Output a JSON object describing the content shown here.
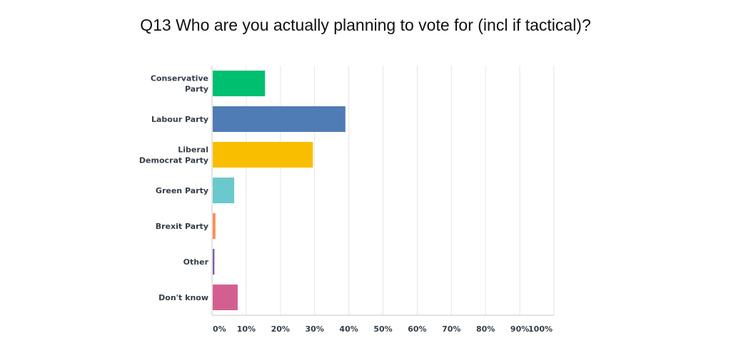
{
  "chart_data": {
    "type": "bar",
    "orientation": "horizontal",
    "title": "Q13 Who are you actually planning to vote for (incl if tactical)?",
    "categories": [
      [
        "Conservative",
        "Party"
      ],
      [
        "Labour Party"
      ],
      [
        "Liberal",
        "Democrat Party"
      ],
      [
        "Green Party"
      ],
      [
        "Brexit Party"
      ],
      [
        "Other"
      ],
      [
        "Don't know"
      ]
    ],
    "values": [
      15.5,
      39,
      29.5,
      6.5,
      1,
      0.7,
      7.5
    ],
    "colors": [
      "#00bf6f",
      "#507cb6",
      "#f9be00",
      "#6bc8cd",
      "#ff8b4f",
      "#7d5ba6",
      "#d25f90"
    ],
    "xlim": [
      0,
      100
    ],
    "ticks": [
      "0%",
      "10%",
      "20%",
      "30%",
      "40%",
      "50%",
      "60%",
      "70%",
      "80%",
      "90%",
      "100%"
    ],
    "grid": true
  }
}
